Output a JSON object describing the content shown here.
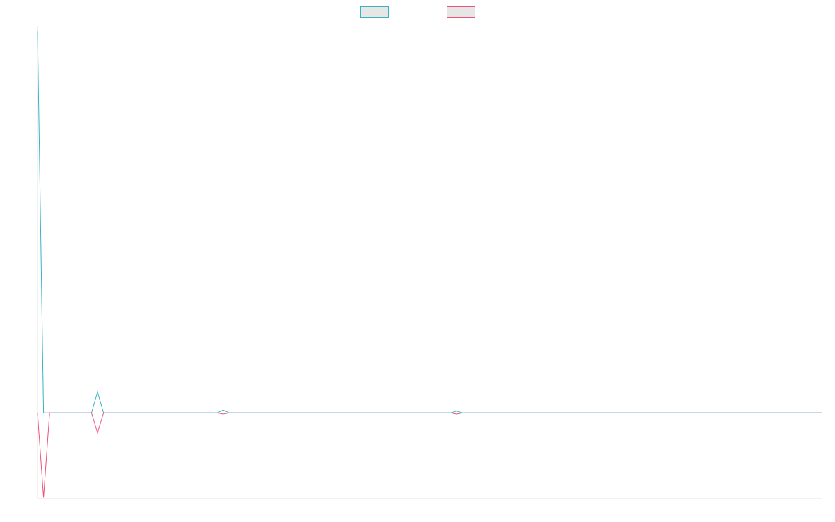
{
  "chart_data": {
    "type": "line",
    "title": "",
    "xlabel": "",
    "ylabel": "",
    "legend_position": "top-center",
    "grid": false,
    "x": [
      0,
      1,
      2,
      3,
      4,
      5,
      6,
      7,
      8,
      9,
      10,
      11,
      12,
      13,
      14,
      15,
      16,
      17,
      18,
      19,
      20,
      21,
      22,
      23,
      24,
      25,
      26,
      27,
      28,
      29,
      30,
      31,
      32,
      33,
      34,
      35,
      36,
      37,
      38,
      39,
      40,
      41,
      42,
      43,
      44,
      45,
      46,
      47,
      48,
      49,
      50,
      51,
      52,
      53,
      54,
      55,
      56,
      57,
      58,
      59,
      60,
      61,
      62,
      63,
      64,
      65,
      66,
      67,
      68,
      69,
      70,
      71,
      72,
      73,
      74,
      75,
      76,
      77,
      78,
      79,
      80,
      81,
      82,
      83,
      84,
      85,
      86,
      87,
      88,
      89,
      90,
      91,
      92,
      93,
      94,
      95,
      96,
      97,
      98,
      99,
      100,
      101,
      102,
      103,
      104,
      105,
      106,
      107,
      108,
      109,
      110,
      111,
      112,
      113,
      114,
      115,
      116,
      117,
      118,
      119,
      120,
      121,
      122,
      123,
      124,
      125,
      126,
      127,
      128,
      129,
      130,
      131
    ],
    "ylim": [
      -150,
      680
    ],
    "series": [
      {
        "color": "#36b3c3",
        "values": [
          670,
          0,
          0,
          0,
          0,
          0,
          0,
          0,
          0,
          0,
          37,
          0,
          0,
          0,
          0,
          0,
          0,
          0,
          0,
          0,
          0,
          0,
          0,
          0,
          0,
          0,
          0,
          0,
          0,
          0,
          0,
          5,
          0,
          0,
          0,
          0,
          0,
          0,
          0,
          0,
          0,
          0,
          0,
          0,
          0,
          0,
          0,
          0,
          0,
          0,
          0,
          0,
          0,
          0,
          0,
          0,
          0,
          0,
          0,
          0,
          0,
          0,
          0,
          0,
          0,
          0,
          0,
          0,
          0,
          0,
          3,
          0,
          0,
          0,
          0,
          0,
          0,
          0,
          0,
          0,
          0,
          0,
          0,
          0,
          0,
          0,
          0,
          0,
          0,
          0,
          0,
          0,
          0,
          0,
          0,
          0,
          0,
          0,
          0,
          0,
          0,
          0,
          0,
          0,
          0,
          0,
          0,
          0,
          0,
          0,
          0,
          0,
          0,
          0,
          0,
          0,
          0,
          0,
          0,
          0,
          0,
          0,
          0,
          0,
          0,
          0,
          0,
          0,
          0,
          0,
          0,
          0
        ]
      },
      {
        "color": "#f0507a",
        "values": [
          0,
          -148,
          0,
          0,
          0,
          0,
          0,
          0,
          0,
          0,
          -35,
          0,
          0,
          0,
          0,
          0,
          0,
          0,
          0,
          0,
          0,
          0,
          0,
          0,
          0,
          0,
          0,
          0,
          0,
          0,
          0,
          -2,
          0,
          0,
          0,
          0,
          0,
          0,
          0,
          0,
          0,
          0,
          0,
          0,
          0,
          0,
          0,
          0,
          0,
          0,
          0,
          0,
          0,
          0,
          0,
          0,
          0,
          0,
          0,
          0,
          0,
          0,
          0,
          0,
          0,
          0,
          0,
          0,
          0,
          0,
          -2,
          0,
          0,
          0,
          0,
          0,
          0,
          0,
          0,
          0,
          0,
          0,
          0,
          0,
          0,
          0,
          0,
          0,
          0,
          0,
          0,
          0,
          0,
          0,
          0,
          0,
          0,
          0,
          0,
          0,
          0,
          0,
          0,
          0,
          0,
          0,
          0,
          0,
          0,
          0,
          0,
          0,
          0,
          0,
          0,
          0,
          0,
          0,
          0,
          0,
          0,
          0,
          0,
          0,
          0,
          0,
          0,
          0,
          0,
          0,
          0,
          0
        ]
      }
    ]
  }
}
